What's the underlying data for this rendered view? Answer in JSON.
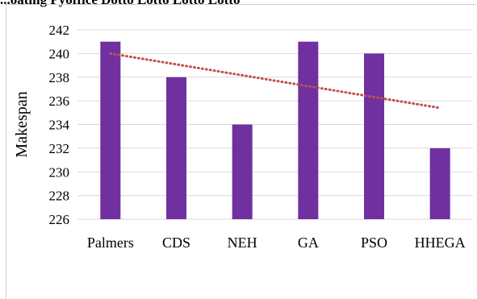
{
  "header_fragment": "...oating Pyoffice Dotto Lotto Lotto Lotto",
  "chart_data": {
    "type": "bar",
    "categories": [
      "Palmers",
      "CDS",
      "NEH",
      "GA",
      "PSO",
      "HHEGA"
    ],
    "values": [
      241,
      238,
      234,
      241,
      240,
      232
    ],
    "title": "",
    "xlabel": "",
    "ylabel": "Makespan",
    "ylim": [
      226,
      242
    ],
    "yticks": [
      226,
      228,
      230,
      232,
      234,
      236,
      238,
      240,
      242
    ],
    "grid": true,
    "legend": "none",
    "trendline": {
      "type": "linear",
      "style": "dotted",
      "start": 240.0,
      "end": 235.4
    },
    "colors": {
      "bar": "#7030a0",
      "trendline": "#c0504d",
      "grid": "#d9d9d9"
    }
  }
}
